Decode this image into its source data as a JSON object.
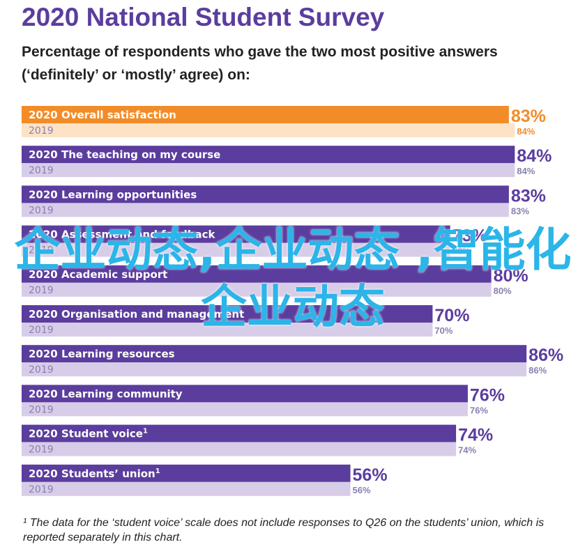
{
  "title": "2020 National Student Survey",
  "subtitle": "Percentage of respondents who gave the two most positive answers (‘definitely’ or ‘mostly’ agree) on:",
  "footnote": "¹ The data for the ‘student voice’ scale does not include responses to Q26 on the students’ union, which is reported separately in this chart.",
  "watermark": "企业动态,企业动态 ,智能化企业动态",
  "colors": {
    "highlight_2020": "#f28c28",
    "highlight_2019": "#fde3c6",
    "bar_2020": "#5b3d9e",
    "bar_2019": "#d8cde8",
    "value_2020": "#5b3d9e",
    "value_2019": "#8a7fb0",
    "highlight_value": "#f28c28"
  },
  "chart_data": {
    "type": "bar",
    "orientation": "horizontal",
    "xlim": [
      0,
      100
    ],
    "categories": [
      "Overall satisfaction",
      "The teaching on my course",
      "Learning opportunities",
      "Assessment and feedback",
      "Academic support",
      "Organisation and management",
      "Learning resources",
      "Learning community",
      "Student voice",
      "Students’ union"
    ],
    "superscripts": [
      "",
      "",
      "",
      "",
      "",
      "",
      "",
      "",
      "1",
      "1"
    ],
    "series": [
      {
        "name": "2020",
        "values": [
          83,
          84,
          83,
          73,
          80,
          70,
          86,
          76,
          74,
          56
        ],
        "labels": [
          "83%",
          "84%",
          "83%",
          "73%",
          "80%",
          "70%",
          "86%",
          "76%",
          "74%",
          "56%"
        ]
      },
      {
        "name": "2019",
        "values": [
          84,
          84,
          83,
          73,
          80,
          70,
          86,
          76,
          74,
          56
        ],
        "labels": [
          "84%",
          "84%",
          "83%",
          "73%",
          "80%",
          "70%",
          "86%",
          "76%",
          "74%",
          "56%"
        ]
      }
    ],
    "highlight_index": 0
  }
}
